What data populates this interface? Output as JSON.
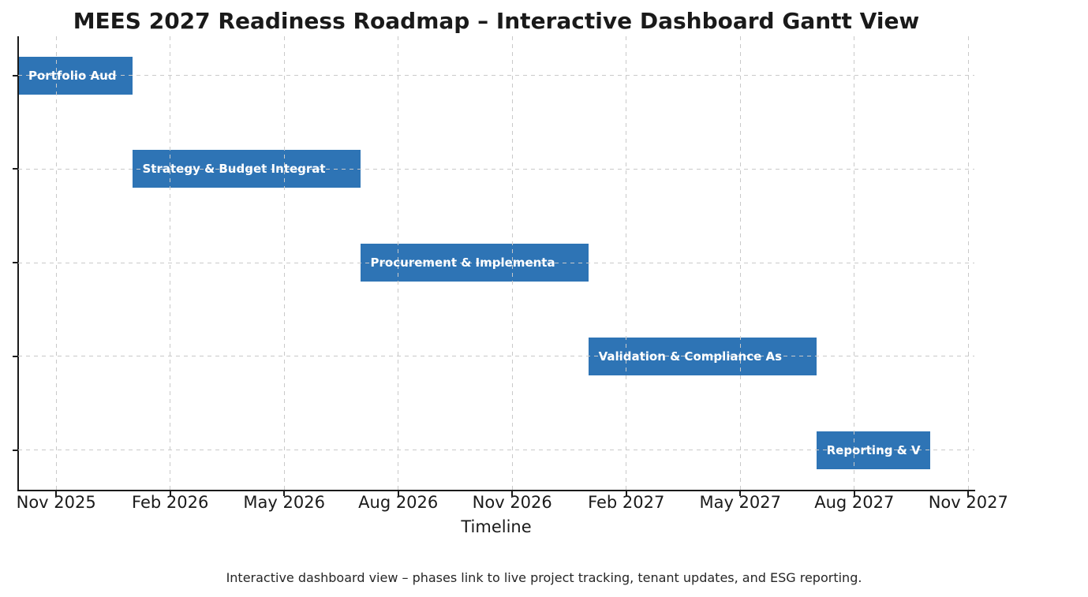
{
  "caption": "Interactive dashboard view – phases link to live project tracking, tenant updates, and ESG reporting.",
  "chart_data": {
    "type": "bar",
    "subtype": "gantt",
    "title": "MEES 2027 Readiness Roadmap – Interactive Dashboard Gantt View",
    "xlabel": "Timeline",
    "ylabel": "",
    "grid": true,
    "legend": false,
    "x_origin": "Oct 2025",
    "xlim_months": [
      0,
      25.16
    ],
    "x_ticks": [
      {
        "label": "Nov 2025",
        "month": 1
      },
      {
        "label": "Feb 2026",
        "month": 4
      },
      {
        "label": "May 2026",
        "month": 7
      },
      {
        "label": "Aug 2026",
        "month": 10
      },
      {
        "label": "Nov 2026",
        "month": 13
      },
      {
        "label": "Feb 2027",
        "month": 16
      },
      {
        "label": "May 2027",
        "month": 19
      },
      {
        "label": "Aug 2027",
        "month": 22
      },
      {
        "label": "Nov 2027",
        "month": 25
      }
    ],
    "tasks": [
      {
        "name": "Portfolio Aud",
        "start": "Oct 2025",
        "end": "Jan 2026",
        "start_month": 0,
        "end_month": 3
      },
      {
        "name": "Strategy & Budget Integrat",
        "start": "Jan 2026",
        "end": "Jul 2026",
        "start_month": 3,
        "end_month": 9
      },
      {
        "name": "Procurement & Implementa",
        "start": "Jul 2026",
        "end": "Jan 2027",
        "start_month": 9,
        "end_month": 15
      },
      {
        "name": "Validation & Compliance As",
        "start": "Jan 2027",
        "end": "Jul 2027",
        "start_month": 15,
        "end_month": 21
      },
      {
        "name": "Reporting & V",
        "start": "Jul 2027",
        "end": "Oct 2027",
        "start_month": 21,
        "end_month": 24
      }
    ],
    "colors": {
      "bar_fill": "#2e74b5",
      "bar_label": "#ffffff",
      "grid": "#c9c9c9",
      "axis": "#1a1a1a",
      "background": "#ffffff"
    }
  }
}
